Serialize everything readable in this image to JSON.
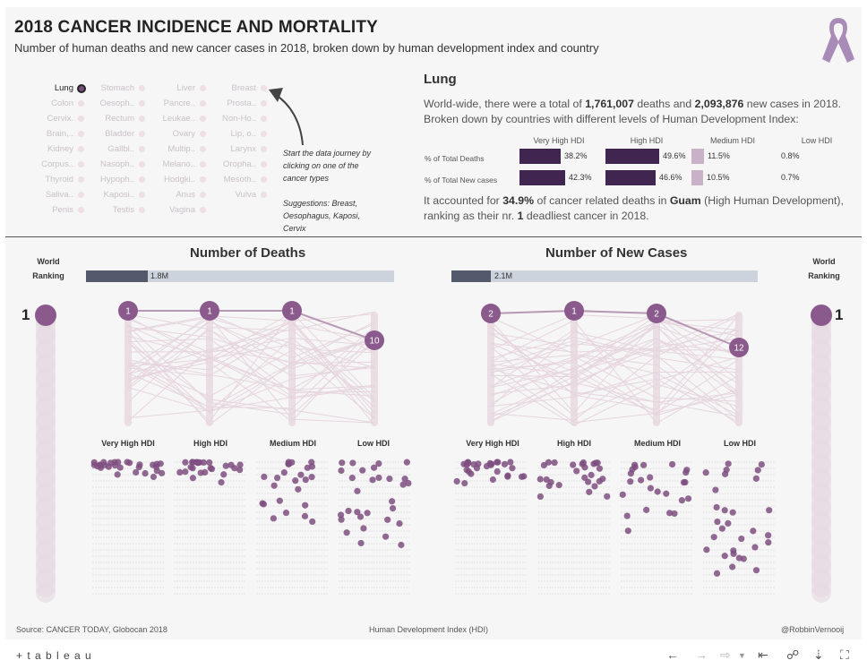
{
  "header": {
    "title": "2018 CANCER INCIDENCE AND MORTALITY",
    "subtitle": "Number of human deaths and new cancer cases in 2018, broken down by human development index and country",
    "ribbon_icon": "cancer-ribbon-icon",
    "ribbon_color": "#a98bb8"
  },
  "cancer_types": {
    "columns": [
      [
        "Lung",
        "Colon",
        "Cervix.",
        "Brain,..",
        "Kidney",
        "Corpus..",
        "Thyroid",
        "Saliva..",
        "Penis"
      ],
      [
        "Stomach",
        "Oesoph..",
        "Rectum",
        "Bladder",
        "Gallbl..",
        "Nasoph..",
        "Hypoph..",
        "Kaposi..",
        "Testis"
      ],
      [
        "Liver",
        "Pancre..",
        "Leukae..",
        "Ovary",
        "Multip..",
        "Melano..",
        "Hodgki..",
        "Anus",
        "Vagina"
      ],
      [
        "Breast",
        "Prosta..",
        "Non-Ho..",
        "Lip, o..",
        "Larynx",
        "Oropha..",
        "Mesoth..",
        "Vulva"
      ]
    ],
    "selected": "Lung",
    "journey_note": "Start the data journey by clicking on one of the cancer types",
    "suggestions": "Suggestions: Breast, Oesophagus, Kaposi, Cervix"
  },
  "summary": {
    "cancer": "Lung",
    "intro": "World-wide, there were a total of",
    "deaths": "1,761,007",
    "mid": "deaths and",
    "new_cases": "2,093,876",
    "end": "new cases in 2018.",
    "line2": "Broken down by countries with different levels of Human Development Index:",
    "hdi_headers": [
      "Very High HDI",
      "High HDI",
      "Medium HDI",
      "Low HDI"
    ],
    "rows": [
      {
        "label": "% of Total Deaths",
        "values": [
          "38.2%",
          "49.6%",
          "11.5%",
          "0.8%"
        ],
        "pct": [
          38.2,
          49.6,
          11.5,
          0.8
        ]
      },
      {
        "label": "% of Total New cases",
        "values": [
          "42.3%",
          "46.6%",
          "10.5%",
          "0.7%"
        ],
        "pct": [
          42.3,
          46.6,
          10.5,
          0.7
        ]
      }
    ],
    "country_text_1": "It accounted for",
    "country_pct": "34.9%",
    "country_text_2": "of cancer related deaths in",
    "country": "Guam",
    "country_text_3": "(High Human Development),",
    "country_text_4": "ranking as their nr.",
    "country_rank": "1",
    "country_text_5": "deadliest cancer in 2018."
  },
  "deaths_panel": {
    "title": "Number of Deaths",
    "total_label": "1.8M",
    "total_fraction": 0.2,
    "ranks": [
      "1",
      "1",
      "1",
      "10"
    ],
    "hdi_labels": [
      "Very High HDI",
      "High HDI",
      "Medium HDI",
      "Low HDI"
    ]
  },
  "cases_panel": {
    "title": "Number of New Cases",
    "total_label": "2.1M",
    "total_fraction": 0.13,
    "ranks": [
      "2",
      "1",
      "2",
      "12"
    ],
    "hdi_labels": [
      "Very High HDI",
      "High HDI",
      "Medium HDI",
      "Low HDI"
    ]
  },
  "world_ranking": {
    "label_line1": "World",
    "label_line2": "Ranking",
    "deaths_rank": "1",
    "cases_rank": "1"
  },
  "colors": {
    "accent": "#8a5a8c",
    "dark_bar": "#3f2550",
    "light_bar": "#c9b2c7",
    "total_fill": "#535a6b",
    "total_bg": "#ccd3dd"
  },
  "footer": {
    "source": "Source: CANCER TODAY, Globocan 2018",
    "axis": "Human Development Index (HDI)",
    "author": "@RobbinVernooij"
  },
  "toolbar": {
    "logo": "+ t a b l e a u",
    "icons": [
      "undo-icon",
      "redo-icon",
      "revert-icon",
      "reset-icon",
      "share-icon",
      "download-icon",
      "fullscreen-icon"
    ]
  }
}
